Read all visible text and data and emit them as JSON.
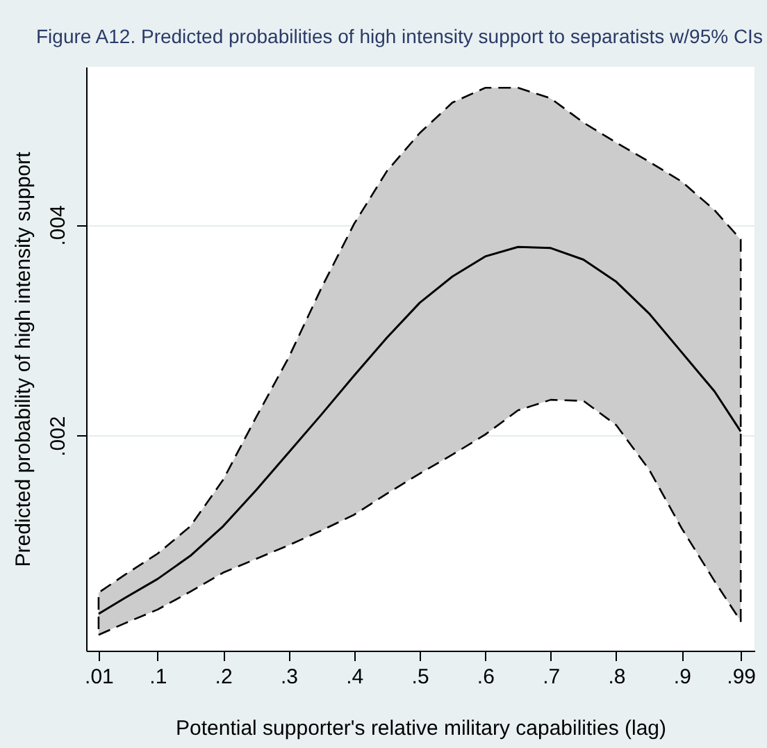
{
  "chart_data": {
    "type": "line",
    "title": "Figure A12. Predicted probabilities of high intensity support to separatists w/95% CIs",
    "xlabel": "Potential supporter's relative military capabilities (lag)",
    "ylabel": "Predicted probability of high intensity support",
    "x": [
      0.01,
      0.05,
      0.1,
      0.15,
      0.2,
      0.25,
      0.3,
      0.35,
      0.4,
      0.45,
      0.5,
      0.55,
      0.6,
      0.65,
      0.7,
      0.75,
      0.8,
      0.85,
      0.9,
      0.95,
      0.99
    ],
    "series": [
      {
        "color": "#000000",
        "line_style": "solid",
        "values": [
          0.00031,
          0.00046,
          0.00064,
          0.00086,
          0.00114,
          0.00148,
          0.00184,
          0.0022,
          0.00257,
          0.00293,
          0.00326,
          0.00351,
          0.0037,
          0.00379,
          0.00378,
          0.00367,
          0.00346,
          0.00316,
          0.00279,
          0.00242,
          0.00204
        ],
        "lower": [
          0.00011,
          0.00022,
          0.00035,
          0.00052,
          0.0007,
          0.00083,
          0.00096,
          0.0011,
          0.00125,
          0.00145,
          0.00164,
          0.00182,
          0.00201,
          0.00224,
          0.00234,
          0.00233,
          0.0021,
          0.00168,
          0.00112,
          0.00062,
          0.00024
        ],
        "upper": [
          0.00051,
          0.00068,
          0.00088,
          0.00114,
          0.00158,
          0.00217,
          0.00274,
          0.0034,
          0.00401,
          0.00451,
          0.00487,
          0.00516,
          0.0053,
          0.0053,
          0.0052,
          0.00497,
          0.00478,
          0.0046,
          0.00441,
          0.00414,
          0.00386
        ]
      }
    ],
    "xlim": [
      -0.009,
      1.011
    ],
    "xticks": [
      {
        "value": 0.01,
        "label": ".01"
      },
      {
        "value": 0.1,
        "label": ".1"
      },
      {
        "value": 0.2,
        "label": ".2"
      },
      {
        "value": 0.3,
        "label": ".3"
      },
      {
        "value": 0.4,
        "label": ".4"
      },
      {
        "value": 0.5,
        "label": ".5"
      },
      {
        "value": 0.6,
        "label": ".6"
      },
      {
        "value": 0.7,
        "label": ".7"
      },
      {
        "value": 0.8,
        "label": ".8"
      },
      {
        "value": 0.9,
        "label": ".9"
      },
      {
        "value": 0.99,
        "label": ".99"
      }
    ],
    "ylim": [
      -4e-05,
      0.0055
    ],
    "yticks": [
      {
        "value": 0.002,
        "label": ".002"
      },
      {
        "value": 0.004,
        "label": ".004"
      }
    ],
    "grid": "y",
    "marker": "none"
  }
}
